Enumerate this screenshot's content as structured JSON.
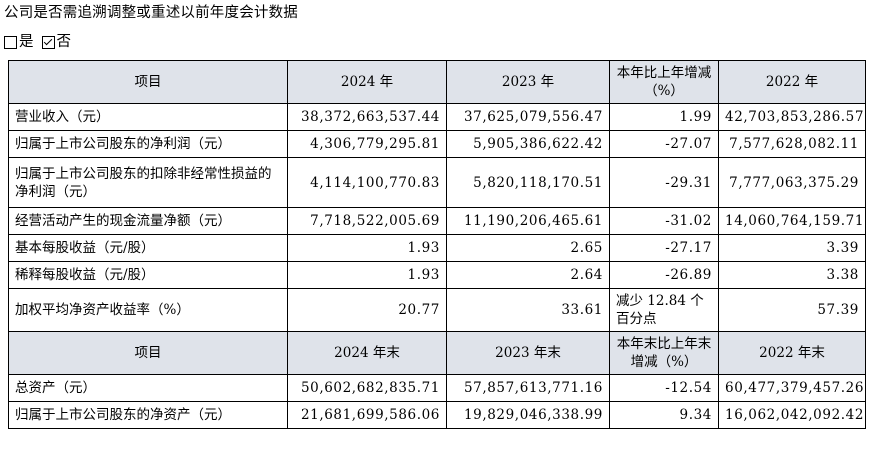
{
  "title": "公司是否需追溯调整或重述以前年度会计数据",
  "options": [
    {
      "label": "是",
      "checked": false
    },
    {
      "label": "否",
      "checked": true
    }
  ],
  "header1": [
    "项目",
    "2024 年",
    "2023 年",
    "本年比上年增减（%）",
    "2022 年"
  ],
  "rows1": [
    [
      "营业收入（元）",
      "38,372,663,537.44",
      "37,625,079,556.47",
      "1.99",
      "42,703,853,286.57"
    ],
    [
      "归属于上市公司股东的净利润（元）",
      "4,306,779,295.81",
      "5,905,386,622.42",
      "-27.07",
      "7,577,628,082.11"
    ],
    [
      "归属于上市公司股东的扣除非经常性损益的净利润（元）",
      "4,114,100,770.83",
      "5,820,118,170.51",
      "-29.31",
      "7,777,063,375.29"
    ],
    [
      "经营活动产生的现金流量净额（元）",
      "7,718,522,005.69",
      "11,190,206,465.61",
      "-31.02",
      "14,060,764,159.71"
    ],
    [
      "基本每股收益（元/股）",
      "1.93",
      "2.65",
      "-27.17",
      "3.39"
    ],
    [
      "稀释每股收益（元/股）",
      "1.93",
      "2.64",
      "-26.89",
      "3.38"
    ],
    [
      "加权平均净资产收益率（%）",
      "20.77",
      "33.61",
      "减少 12.84 个百分点",
      "57.39"
    ]
  ],
  "header2": [
    "项目",
    "2024 年末",
    "2023 年末",
    "本年末比上年末增减（%）",
    "2022 年末"
  ],
  "rows2": [
    [
      "总资产（元）",
      "50,602,682,835.71",
      "57,857,613,771.16",
      "-12.54",
      "60,477,379,457.26"
    ],
    [
      "归属于上市公司股东的净资产（元）",
      "21,681,699,586.06",
      "19,829,046,338.99",
      "9.34",
      "16,062,042,092.42"
    ]
  ]
}
